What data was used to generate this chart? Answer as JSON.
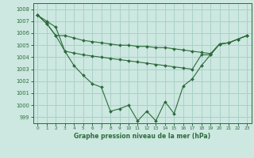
{
  "x": [
    0,
    1,
    2,
    3,
    4,
    5,
    6,
    7,
    8,
    9,
    10,
    11,
    12,
    13,
    14,
    15,
    16,
    17,
    18,
    19,
    20,
    21,
    22,
    23
  ],
  "y_main": [
    1007.5,
    1006.8,
    1005.8,
    1004.5,
    1003.3,
    1002.5,
    1001.8,
    1001.5,
    999.5,
    999.7,
    1000.0,
    998.7,
    999.5,
    998.7,
    1000.3,
    999.3,
    1001.6,
    1002.2,
    1003.3,
    1004.2,
    1005.1,
    1005.2,
    1005.5,
    1005.8
  ],
  "y_upper": [
    1007.5,
    1006.8,
    1005.8,
    1005.8,
    1005.6,
    1005.4,
    1005.3,
    1005.2,
    1005.1,
    1005.0,
    1005.0,
    1004.9,
    1004.9,
    1004.8,
    1004.8,
    1004.7,
    1004.6,
    1004.5,
    1004.4,
    1004.3,
    1005.1,
    1005.2,
    1005.5,
    1005.8
  ],
  "y_mid": [
    1007.5,
    1007.0,
    1006.5,
    1004.5,
    1004.35,
    1004.2,
    1004.1,
    1004.0,
    1003.9,
    1003.8,
    1003.7,
    1003.6,
    1003.5,
    1003.4,
    1003.3,
    1003.2,
    1003.1,
    1003.0,
    1004.2,
    1004.2,
    1005.1,
    1005.2,
    1005.5,
    1005.8
  ],
  "bg_color": "#cce8e0",
  "grid_color": "#aad0c8",
  "line_color": "#2d6b3c",
  "xlabel": "Graphe pression niveau de la mer (hPa)",
  "ylim": [
    998.5,
    1008.5
  ],
  "xlim": [
    -0.5,
    23.5
  ],
  "yticks": [
    999,
    1000,
    1001,
    1002,
    1003,
    1004,
    1005,
    1006,
    1007,
    1008
  ],
  "xticks": [
    0,
    1,
    2,
    3,
    4,
    5,
    6,
    7,
    8,
    9,
    10,
    11,
    12,
    13,
    14,
    15,
    16,
    17,
    18,
    19,
    20,
    21,
    22,
    23
  ]
}
